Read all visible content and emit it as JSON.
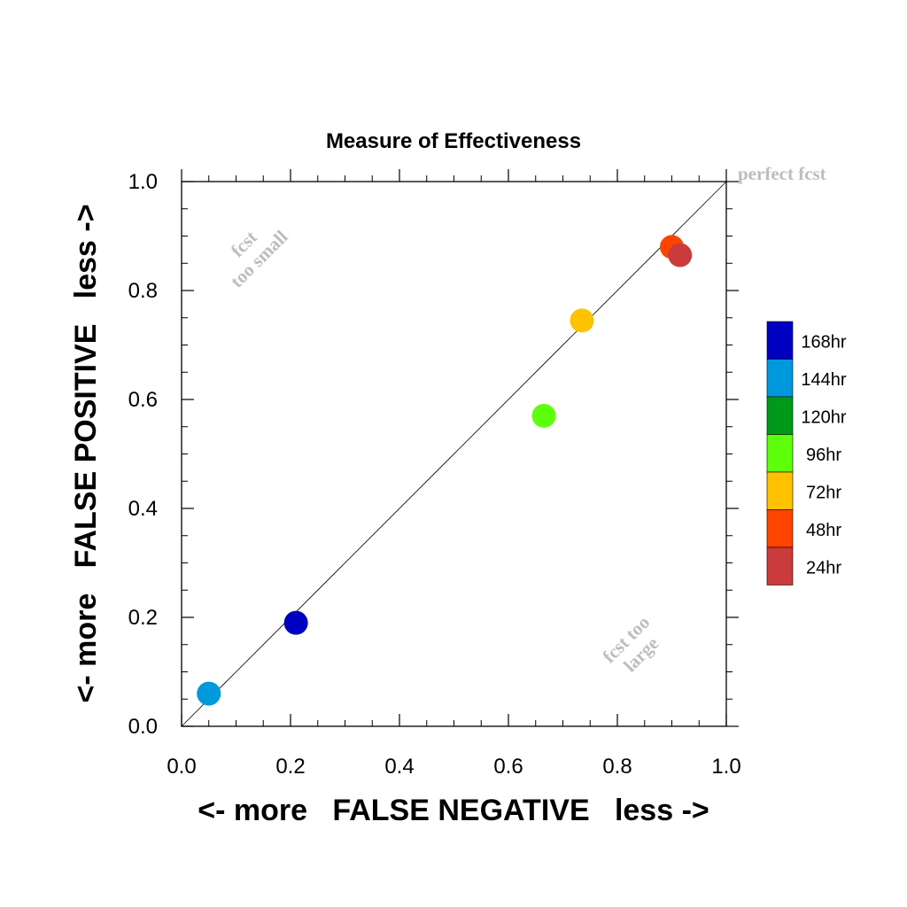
{
  "chart_data": {
    "type": "scatter",
    "title": "Measure of Effectiveness",
    "xlabel": "<- more   FALSE NEGATIVE   less ->",
    "ylabel": "<- more   FALSE POSITIVE   less ->",
    "xlim": [
      0.0,
      1.0
    ],
    "ylim": [
      0.0,
      1.0
    ],
    "xticks": [
      "0.0",
      "0.2",
      "0.4",
      "0.6",
      "0.8",
      "1.0"
    ],
    "yticks": [
      "0.0",
      "0.2",
      "0.4",
      "0.6",
      "0.8",
      "1.0"
    ],
    "grid": false,
    "reference_line": "diagonal y = x",
    "annotations": {
      "perfect": "perfect fcst",
      "small_line1": "fcst",
      "small_line2": "too small",
      "large_line1": "fcst too",
      "large_line2": "large"
    },
    "legend_position": "right",
    "series": [
      {
        "name": "168hr",
        "color": "#0000c0",
        "x": 0.21,
        "y": 0.19
      },
      {
        "name": "144hr",
        "color": "#0099dd",
        "x": 0.05,
        "y": 0.06
      },
      {
        "name": "120hr",
        "color": "#009a1a",
        "x": null,
        "y": null
      },
      {
        "name": "96hr",
        "color": "#5eff0a",
        "x": 0.665,
        "y": 0.57
      },
      {
        "name": "72hr",
        "color": "#ffc200",
        "x": 0.735,
        "y": 0.745
      },
      {
        "name": "48hr",
        "color": "#ff4400",
        "x": 0.9,
        "y": 0.88
      },
      {
        "name": "24hr",
        "color": "#cc3b3b",
        "x": 0.915,
        "y": 0.865
      }
    ]
  }
}
